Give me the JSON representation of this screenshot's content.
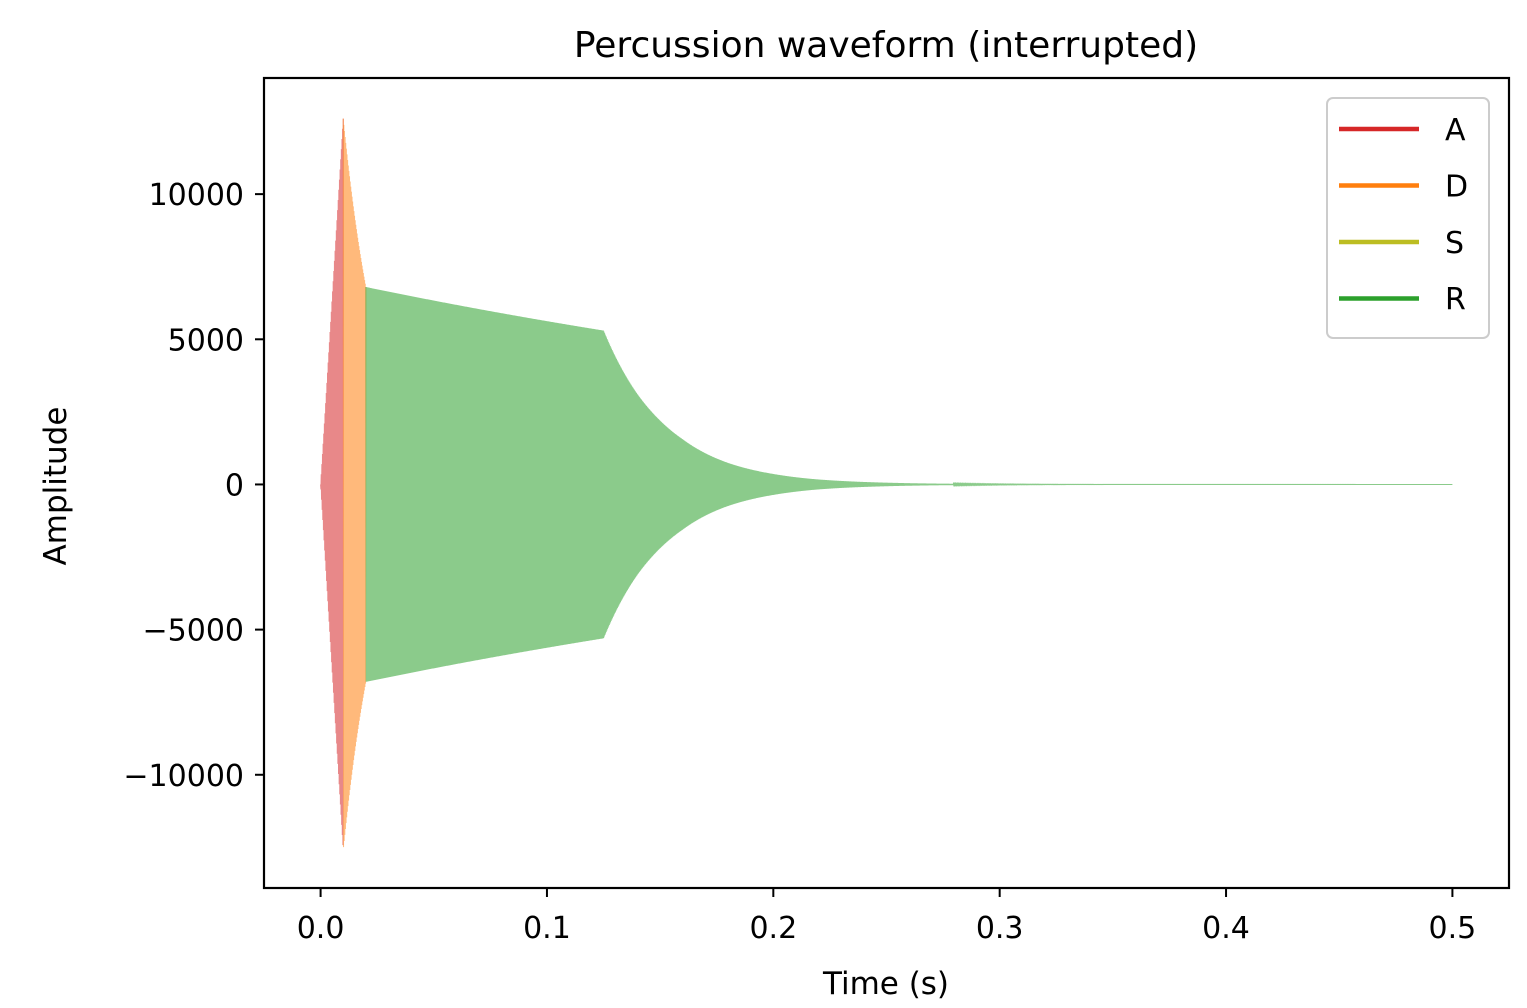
{
  "chart_data": {
    "type": "line",
    "title": "Percussion waveform (interrupted)",
    "xlabel": "Time (s)",
    "ylabel": "Amplitude",
    "xlim": [
      -0.025,
      0.525
    ],
    "ylim": [
      -13900,
      14000
    ],
    "x_ticks": [
      0.0,
      0.1,
      0.2,
      0.3,
      0.4,
      0.5
    ],
    "x_tick_labels": [
      "0.0",
      "0.1",
      "0.2",
      "0.3",
      "0.4",
      "0.5"
    ],
    "y_ticks": [
      -10000,
      -5000,
      0,
      5000,
      10000
    ],
    "y_tick_labels": [
      "−10000",
      "−5000",
      "0",
      "5000",
      "10000"
    ],
    "grid": false,
    "legend_position": "upper-right",
    "series": [
      {
        "name": "A",
        "color": "#d62728",
        "segment": [
          0.0,
          0.01
        ],
        "envelope_points": [
          [
            0.0,
            0
          ],
          [
            0.01,
            12600
          ]
        ]
      },
      {
        "name": "D",
        "color": "#ff7f0e",
        "segment": [
          0.01,
          0.02
        ],
        "envelope_points": [
          [
            0.01,
            12600
          ],
          [
            0.02,
            6800
          ]
        ]
      },
      {
        "name": "S",
        "color": "#bcbd22",
        "segment": [
          0.02,
          0.02
        ],
        "envelope_points": []
      },
      {
        "name": "R",
        "color": "#2ca02c",
        "segment": [
          0.02,
          0.5
        ],
        "envelope_points": [
          [
            0.02,
            6800
          ],
          [
            0.125,
            5300
          ],
          [
            0.14,
            3100
          ],
          [
            0.16,
            1550
          ],
          [
            0.18,
            740
          ],
          [
            0.2,
            360
          ],
          [
            0.22,
            170
          ],
          [
            0.25,
            60
          ],
          [
            0.3,
            10
          ],
          [
            0.35,
            2
          ],
          [
            0.5,
            0
          ]
        ]
      }
    ]
  }
}
